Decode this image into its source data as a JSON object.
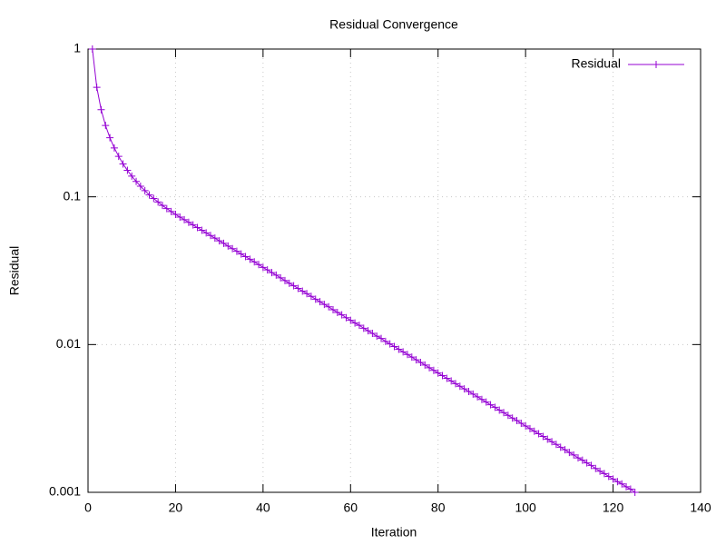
{
  "chart_data": {
    "type": "line",
    "title": "Residual Convergence",
    "x_label": "Iteration",
    "y_label": "Residual",
    "log_y": true,
    "grid": true,
    "legend": "top-right",
    "marker": "plus",
    "xlim": [
      0,
      140
    ],
    "xticks": [
      0,
      20,
      40,
      60,
      80,
      100,
      120,
      140
    ],
    "ylim": [
      0.001,
      1
    ],
    "yticks": [
      1,
      0.1,
      0.01,
      0.001
    ],
    "x": [
      1,
      2,
      3,
      4,
      5,
      6,
      7,
      8,
      9,
      10,
      11,
      12,
      13,
      14,
      15,
      16,
      17,
      18,
      19,
      20,
      21,
      22,
      23,
      24,
      25,
      26,
      27,
      28,
      29,
      30,
      31,
      32,
      33,
      34,
      35,
      36,
      37,
      38,
      39,
      40,
      41,
      42,
      43,
      44,
      45,
      46,
      47,
      48,
      49,
      50,
      51,
      52,
      53,
      54,
      55,
      56,
      57,
      58,
      59,
      60,
      61,
      62,
      63,
      64,
      65,
      66,
      67,
      68,
      69,
      70,
      71,
      72,
      73,
      74,
      75,
      76,
      77,
      78,
      79,
      80,
      81,
      82,
      83,
      84,
      85,
      86,
      87,
      88,
      89,
      90,
      91,
      92,
      93,
      94,
      95,
      96,
      97,
      98,
      99,
      100,
      101,
      102,
      103,
      104,
      105,
      106,
      107,
      108,
      109,
      110,
      111,
      112,
      113,
      114,
      115,
      116,
      117,
      118,
      119,
      120,
      121,
      122,
      123,
      124,
      125
    ],
    "series": [
      {
        "name": "Residual",
        "color": "#9400d3",
        "values": [
          1,
          0.551,
          0.389,
          0.304,
          0.251,
          0.214,
          0.188,
          0.167,
          0.151,
          0.138,
          0.127,
          0.118,
          0.11,
          0.103,
          0.0974,
          0.0922,
          0.0874,
          0.0833,
          0.0795,
          0.076,
          0.0729,
          0.07,
          0.0672,
          0.0645,
          0.0619,
          0.0594,
          0.057,
          0.0547,
          0.0525,
          0.0504,
          0.0484,
          0.0464,
          0.0446,
          0.0428,
          0.041,
          0.0394,
          0.0378,
          0.0363,
          0.0348,
          0.0333,
          0.032,
          0.0307,
          0.0295,
          0.0283,
          0.0271,
          0.026,
          0.025,
          0.024,
          0.023,
          0.0221,
          0.0212,
          0.0203,
          0.0195,
          0.0187,
          0.018,
          0.0172,
          0.0165,
          0.0159,
          0.0152,
          0.0146,
          0.014,
          0.0135,
          0.0129,
          0.0124,
          0.0119,
          0.0114,
          0.011,
          0.0105,
          0.0101,
          0.0097,
          0.0093,
          0.00893,
          0.00857,
          0.00822,
          0.00789,
          0.00757,
          0.00727,
          0.00697,
          0.00669,
          0.00642,
          0.00616,
          0.00591,
          0.00567,
          0.00544,
          0.00522,
          0.00501,
          0.00481,
          0.00462,
          0.00443,
          0.00425,
          0.00408,
          0.00391,
          0.00376,
          0.0036,
          0.00346,
          0.00332,
          0.00318,
          0.00306,
          0.00293,
          0.00281,
          0.0027,
          0.00259,
          0.00249,
          0.00239,
          0.00229,
          0.0022,
          0.00211,
          0.00202,
          0.00194,
          0.00186,
          0.00179,
          0.00171,
          0.00165,
          0.00158,
          0.00152,
          0.00145,
          0.00139,
          0.00134,
          0.00128,
          0.00123,
          0.00118,
          0.00114,
          0.00109,
          0.00105,
          0.001
        ]
      }
    ]
  }
}
